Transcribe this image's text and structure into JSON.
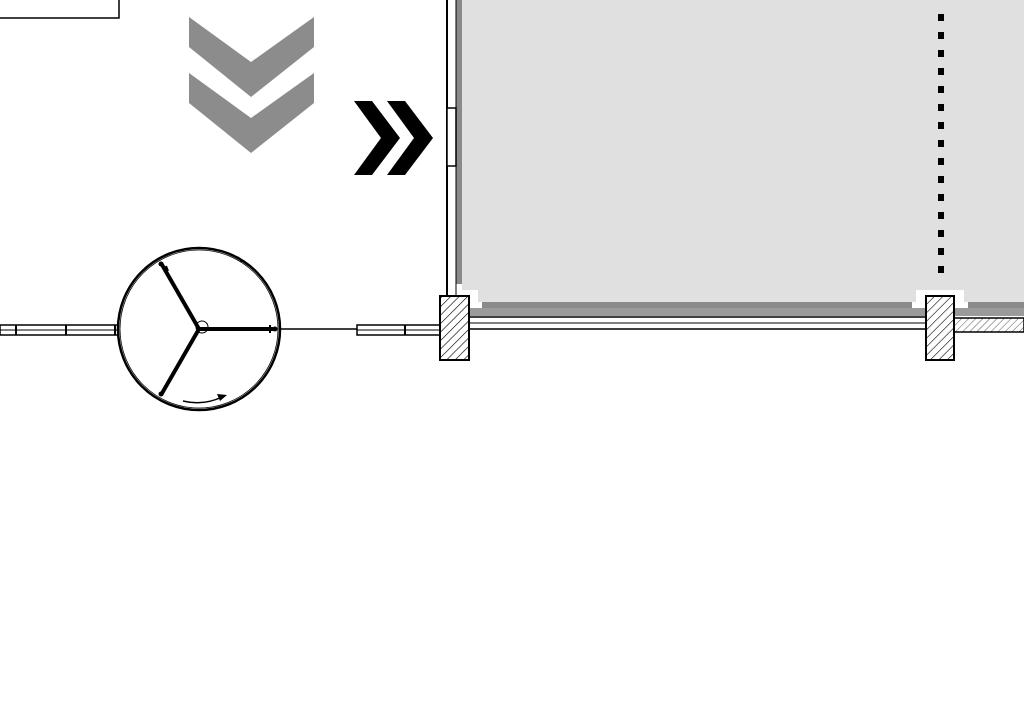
{
  "plan": {
    "room_fill": "#e0e0e0",
    "room_border": "#8a8a8a",
    "wall_color": "#000000",
    "gray_chevron_color": "#8c8c8c",
    "black_chevron_color": "#000000",
    "dotted_line_color": "#000000",
    "hatch_color": "#000000",
    "icons": {
      "down_chevrons": "double-chevron-down-icon",
      "right_chevrons": "double-chevron-right-icon",
      "revolving_door": "revolving-door-icon",
      "rotation_arrow": "curved-arrow-icon"
    }
  }
}
